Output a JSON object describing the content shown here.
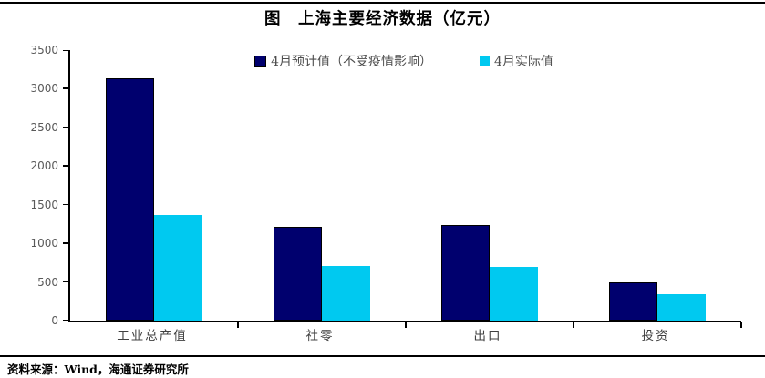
{
  "title": "图　上海主要经济数据（亿元）",
  "source": "资料来源：Wind，海通证券研究所",
  "colors": {
    "forecast_bar": "#00006E",
    "actual_bar": "#00C9F0",
    "axis": "#000000",
    "y_tick_label": "#595959",
    "category_label": "#404040"
  },
  "legend": {
    "items": [
      {
        "label": "4月预计值（不受疫情影响）",
        "color": "#00006E"
      },
      {
        "label": "4月实际值",
        "color": "#00C9F0"
      }
    ]
  },
  "chart_data": {
    "type": "bar",
    "title": "图　上海主要经济数据（亿元）",
    "categories": [
      "工业总产值",
      "社零",
      "出口",
      "投资"
    ],
    "series": [
      {
        "name": "4月预计值（不受疫情影响）",
        "color": "#00006E",
        "values": [
          3140,
          1210,
          1235,
          495
        ]
      },
      {
        "name": "4月实际值",
        "color": "#00C9F0",
        "values": [
          1365,
          705,
          695,
          340
        ]
      }
    ],
    "xlabel": "",
    "ylabel": "",
    "ylim": [
      0,
      3500
    ],
    "yticks": [
      0,
      500,
      1000,
      1500,
      2000,
      2500,
      3000,
      3500
    ],
    "grid": false,
    "legend_position": "top-center"
  }
}
